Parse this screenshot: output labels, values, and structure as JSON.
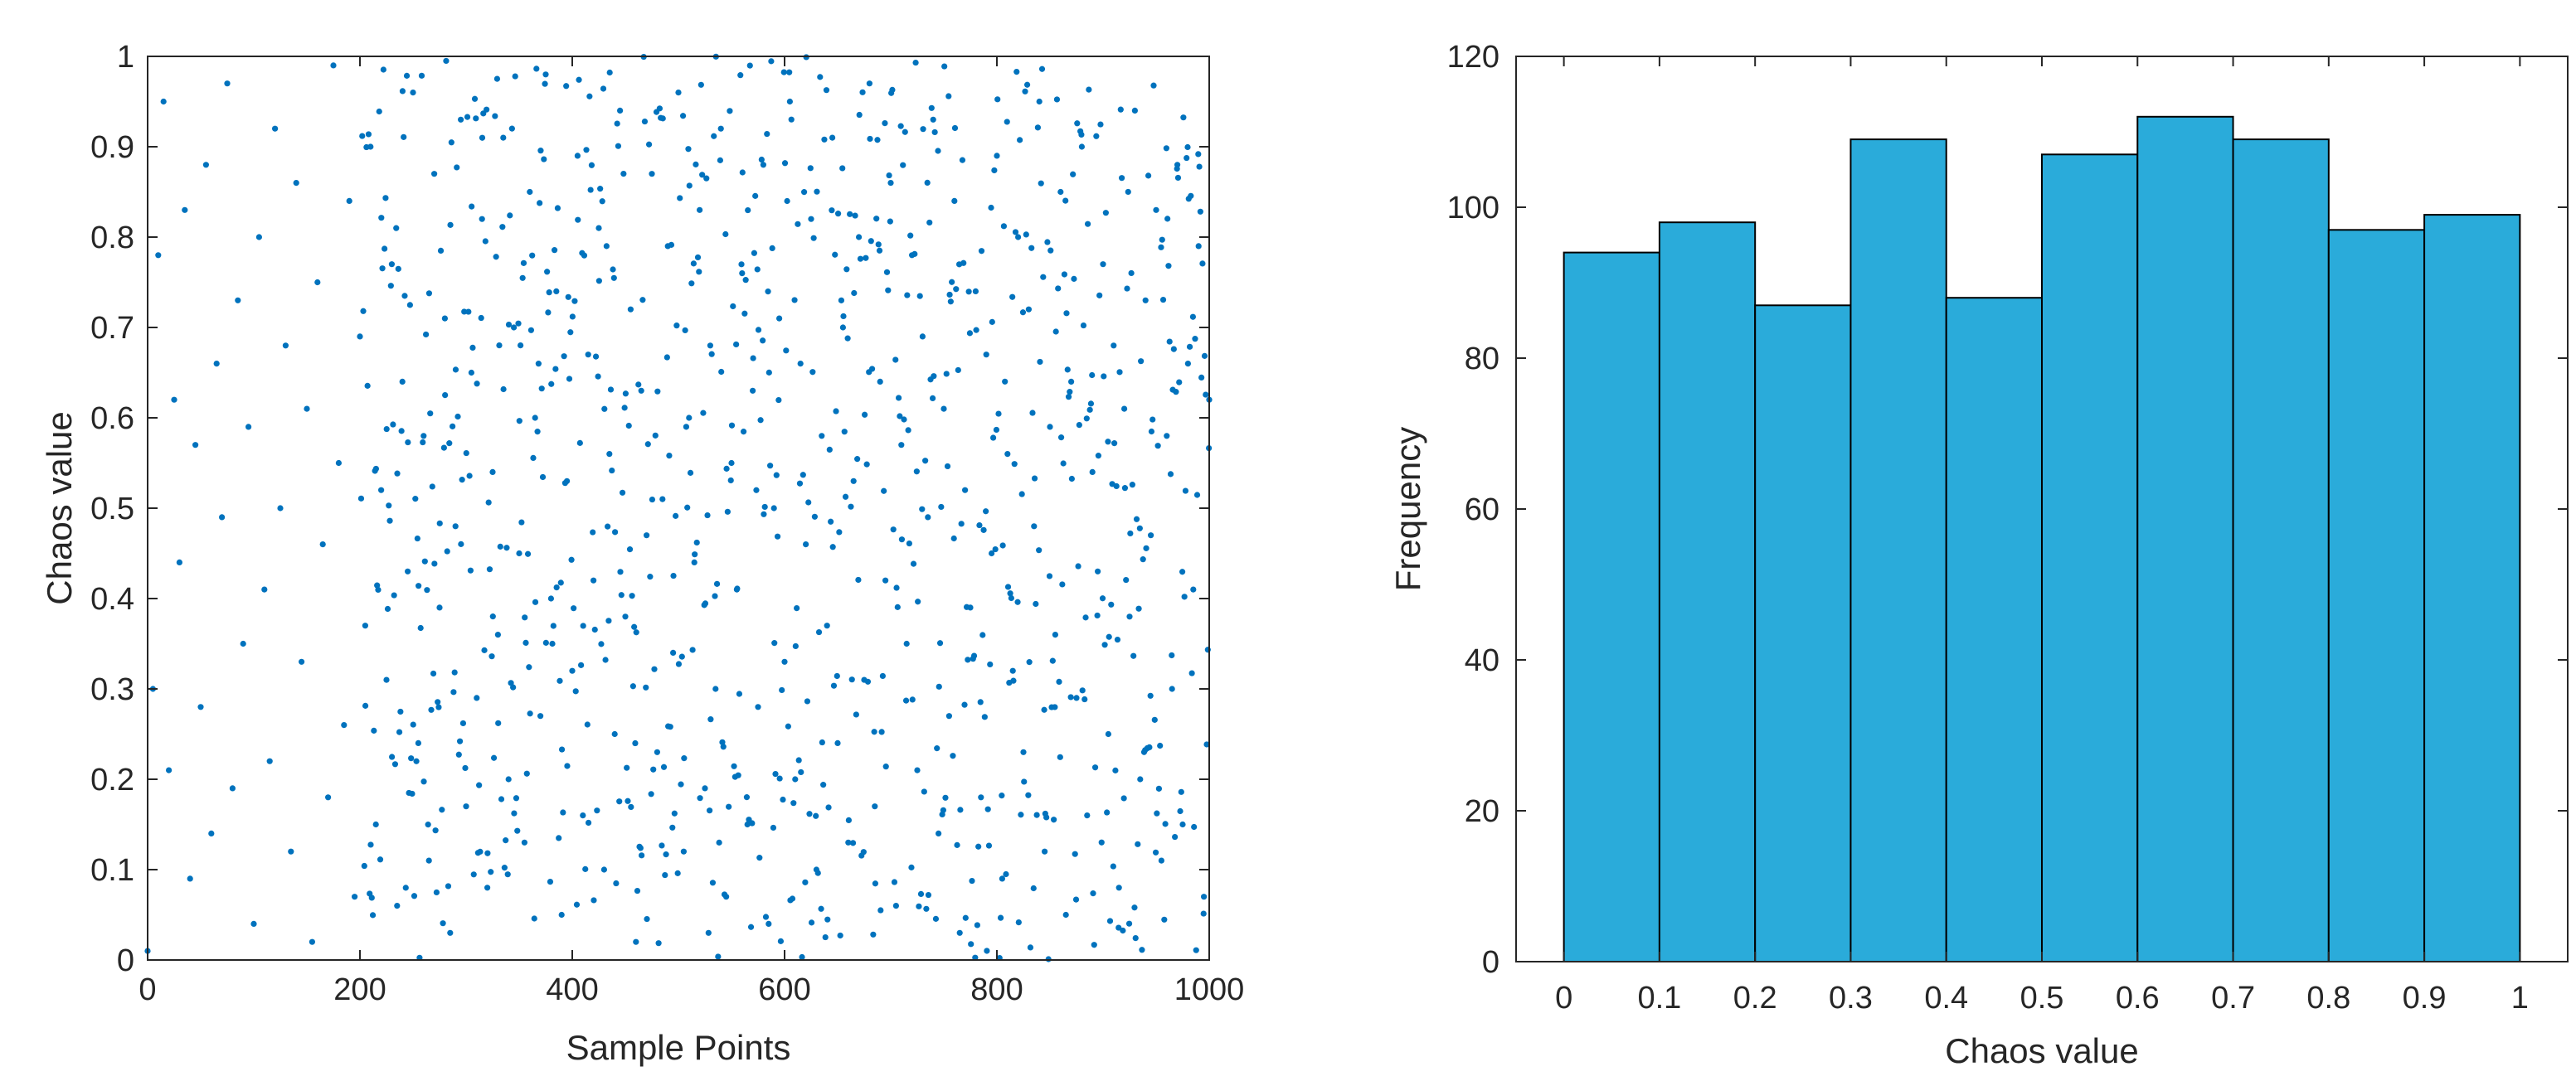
{
  "chart_data": [
    {
      "type": "scatter",
      "title": "",
      "xlabel": "Sample Points",
      "ylabel": "Chaos value",
      "xlim": [
        0,
        1000
      ],
      "ylim": [
        0,
        1
      ],
      "xticks": [
        "0",
        "200",
        "400",
        "600",
        "800",
        "1000"
      ],
      "yticks": [
        "0",
        "0.1",
        "0.2",
        "0.3",
        "0.4",
        "0.5",
        "0.6",
        "0.7",
        "0.8",
        "0.9",
        "1"
      ],
      "grid": false,
      "marker_color": "#0072BD",
      "n_points": 1000,
      "series": [
        {
          "x": [
            0,
            5,
            10,
            15,
            20,
            25,
            30,
            35,
            40,
            45,
            50,
            55,
            60,
            65,
            70,
            75,
            80,
            85,
            90,
            95,
            100,
            105,
            110,
            115,
            120,
            125,
            130,
            135,
            140,
            145,
            150,
            155,
            160,
            165,
            170,
            175,
            180,
            185,
            190,
            195,
            200,
            205,
            210,
            215,
            220,
            225,
            230,
            235,
            240,
            245,
            250,
            255,
            260,
            265,
            270,
            275,
            280,
            285,
            290,
            295,
            300,
            305,
            310,
            315,
            320,
            325,
            330,
            335,
            340,
            345,
            350,
            355,
            360,
            365,
            370,
            375,
            380,
            385,
            390,
            395,
            400,
            405,
            410,
            415,
            420,
            425,
            430,
            435,
            440,
            445,
            450,
            455,
            460,
            465,
            470,
            475,
            480,
            485,
            490,
            495,
            500,
            505,
            510,
            515,
            520,
            525,
            530,
            535,
            540,
            545,
            550,
            555,
            560,
            565,
            570,
            575,
            580,
            585,
            590,
            595,
            600,
            605,
            610,
            615,
            620,
            625,
            630,
            635,
            640,
            645,
            650,
            655,
            660,
            665,
            670,
            675,
            680,
            685,
            690,
            695,
            700,
            705,
            710,
            715,
            720,
            725,
            730,
            735,
            740,
            745,
            750,
            755,
            760,
            765,
            770,
            775,
            780,
            785,
            790,
            795,
            800,
            805,
            810,
            815,
            820,
            825,
            830,
            835,
            840,
            845,
            850,
            855,
            860,
            865,
            870,
            875,
            880,
            885,
            890,
            895,
            900,
            905,
            910,
            915,
            920,
            925,
            930,
            935,
            940,
            945,
            950,
            955,
            960,
            965,
            970,
            975,
            980,
            985,
            990,
            995,
            1000
          ],
          "y": [
            0.01,
            0.3,
            0.78,
            0.95,
            0.21,
            0.62,
            0.44,
            0.83,
            0.09,
            0.57,
            0.28,
            0.88,
            0.14,
            0.66,
            0.49,
            0.97,
            0.19,
            0.73,
            0.35,
            0.59,
            0.04,
            0.8,
            0.41,
            0.22,
            0.92,
            0.5,
            0.68,
            0.12,
            0.86,
            0.33,
            0.61,
            0.02,
            0.75,
            0.46,
            0.18,
            0.99,
            0.55,
            0.26,
            0.84,
            0.07,
            0.69,
            0.37,
            0.9,
            0.15,
            0.52,
            0.31,
            0.77,
            0.06,
            0.64,
            0.43,
            0.96,
            0.24,
            0.58,
            0.11,
            0.87,
            0.39,
            0.71,
            0.03,
            0.48,
            0.93,
            0.17,
            0.65,
            0.29,
            0.82,
            0.08,
            0.54,
            0.36,
            0.91,
            0.2,
            0.7,
            0.45,
            0.13,
            0.85,
            0.6,
            0.27,
            0.98,
            0.4,
            0.74,
            0.05,
            0.53,
            0.32,
            0.89,
            0.16,
            0.67,
            0.42,
            0.81,
            0.1,
            0.56,
            0.25,
            0.94,
            0.38,
            0.72,
            0.02,
            0.63,
            0.47,
            0.87,
            0.23,
            0.51,
            0.79,
            0.34,
            0.96,
            0.12,
            0.6,
            0.44,
            0.83,
            0.19,
            0.68,
            0.3,
            0.92,
            0.07,
            0.55,
            0.41,
            0.76,
            0.15,
            0.63,
            0.28,
            0.88,
            0.04,
            0.5,
            0.71,
            0.33,
            0.95,
            0.2,
            0.66,
            0.46,
            0.82,
            0.1,
            0.58,
            0.37,
            0.91,
            0.24,
            0.7,
            0.13,
            0.53,
            0.8,
            0.31,
            0.97,
            0.17,
            0.64,
            0.42,
            0.86,
            0.06,
            0.57,
            0.35,
            0.78,
            0.21,
            0.69,
            0.49,
            0.93,
            0.14,
            0.61,
            0.27,
            0.84,
            0.03,
            0.52,
            0.39,
            0.74,
            0.18,
            0.67,
            0.45,
            0.89,
            0.09,
            0.56,
            0.32,
            0.8,
            0.23,
            0.72,
            0.48,
            0.95,
            0.12,
            0.59,
            0.36,
            0.85,
            0.05,
            0.64,
            0.29,
            0.9,
            0.16,
            0.54,
            0.43,
            0.77,
            0.25,
            0.68,
            0.08,
            0.61,
            0.38,
            0.94,
            0.2,
            0.73,
            0.47,
            0.83,
            0.11,
            0.58,
            0.3,
            0.88,
            0.15,
            0.66,
            0.41,
            0.79,
            0.07,
            0.62
          ]
        }
      ]
    },
    {
      "type": "bar",
      "title": "",
      "xlabel": "Chaos value",
      "ylabel": "Frequency",
      "bin_edges": [
        0,
        0.1,
        0.2,
        0.3,
        0.4,
        0.5,
        0.6,
        0.7,
        0.8,
        0.9,
        1
      ],
      "values": [
        94,
        98,
        87,
        109,
        88,
        107,
        112,
        109,
        97,
        99
      ],
      "xlim": [
        -0.05,
        1.05
      ],
      "ylim": [
        0,
        120
      ],
      "xticks": [
        "0",
        "0.1",
        "0.2",
        "0.3",
        "0.4",
        "0.5",
        "0.6",
        "0.7",
        "0.8",
        "0.9",
        "1"
      ],
      "yticks": [
        "0",
        "20",
        "40",
        "60",
        "80",
        "100",
        "120"
      ],
      "grid": false,
      "bar_color": "#2AABDA",
      "edge_color": "#000000"
    }
  ]
}
